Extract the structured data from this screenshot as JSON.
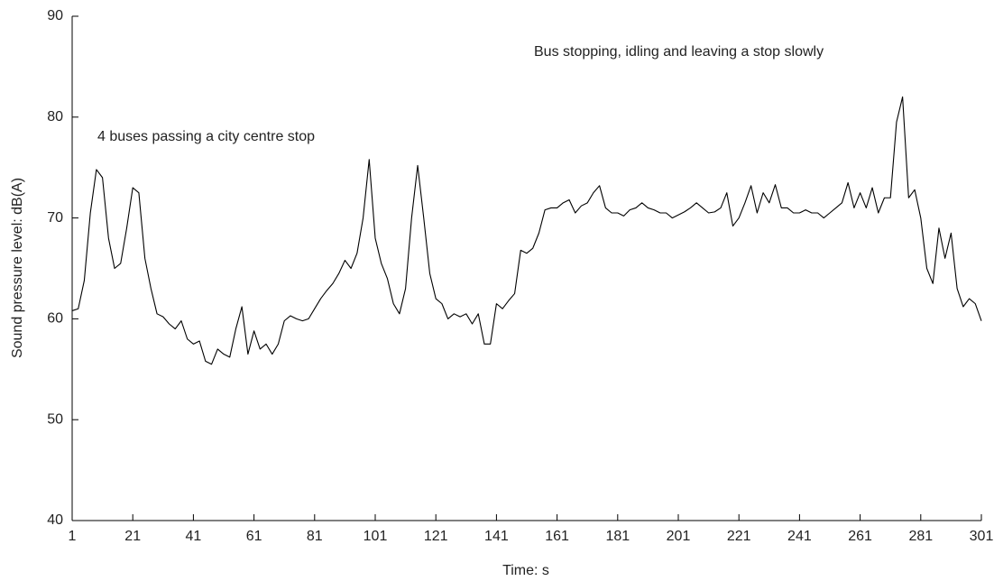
{
  "chart_data": {
    "type": "line",
    "xlabel": "Time: s",
    "ylabel": "Sound pressure level: dB(A)",
    "annotations": [
      "4 buses passing a city centre stop",
      "Bus stopping, idling and leaving a stop slowly"
    ],
    "xlim": [
      1,
      301
    ],
    "ylim": [
      40,
      90
    ],
    "xticks": [
      1,
      21,
      41,
      61,
      81,
      101,
      121,
      141,
      161,
      181,
      201,
      221,
      241,
      261,
      281,
      301
    ],
    "yticks": [
      40,
      50,
      60,
      70,
      80,
      90
    ],
    "x": [
      1,
      3,
      5,
      7,
      9,
      11,
      13,
      15,
      17,
      19,
      21,
      23,
      25,
      27,
      29,
      31,
      33,
      35,
      37,
      39,
      41,
      43,
      45,
      47,
      49,
      51,
      53,
      55,
      57,
      59,
      61,
      63,
      65,
      67,
      69,
      71,
      73,
      75,
      77,
      79,
      81,
      83,
      85,
      87,
      89,
      91,
      93,
      95,
      97,
      99,
      101,
      103,
      105,
      107,
      109,
      111,
      113,
      115,
      117,
      119,
      121,
      123,
      125,
      127,
      129,
      131,
      133,
      135,
      137,
      139,
      141,
      143,
      145,
      147,
      149,
      151,
      153,
      155,
      157,
      159,
      161,
      163,
      165,
      167,
      169,
      171,
      173,
      175,
      177,
      179,
      181,
      183,
      185,
      187,
      189,
      191,
      193,
      195,
      197,
      199,
      201,
      203,
      205,
      207,
      209,
      211,
      213,
      215,
      217,
      219,
      221,
      223,
      225,
      227,
      229,
      231,
      233,
      235,
      237,
      239,
      241,
      243,
      245,
      247,
      249,
      251,
      253,
      255,
      257,
      259,
      261,
      263,
      265,
      267,
      269,
      271,
      273,
      275,
      277,
      279,
      281,
      283,
      285,
      287,
      289,
      291,
      293,
      295,
      297,
      299,
      301
    ],
    "series": [
      {
        "color": "#000000",
        "values": [
          60.8,
          61,
          63.8,
          70.5,
          74.8,
          74,
          68,
          65,
          65.5,
          69,
          73,
          72.5,
          66,
          63,
          60.5,
          60.2,
          59.5,
          59,
          59.8,
          58,
          57.5,
          57.8,
          55.8,
          55.5,
          57,
          56.5,
          56.2,
          59,
          61.2,
          56.5,
          58.8,
          57,
          57.5,
          56.5,
          57.5,
          59.8,
          60.3,
          60,
          59.8,
          60,
          61,
          62,
          62.8,
          63.5,
          64.5,
          65.8,
          65,
          66.5,
          70,
          75.8,
          68,
          65.5,
          64,
          61.5,
          60.5,
          63,
          70,
          75.2,
          70,
          64.5,
          62,
          61.5,
          60,
          60.5,
          60.2,
          60.5,
          59.5,
          60.5,
          57.5,
          57.5,
          61.5,
          61,
          61.8,
          62.5,
          66.8,
          66.5,
          67,
          68.5,
          70.8,
          71,
          71,
          71.5,
          71.8,
          70.5,
          71.2,
          71.5,
          72.5,
          73.2,
          71,
          70.5,
          70.5,
          70.2,
          70.8,
          71,
          71.5,
          71,
          70.8,
          70.5,
          70.5,
          70,
          70.3,
          70.6,
          71,
          71.5,
          71,
          70.5,
          70.6,
          71,
          72.5,
          69.2,
          70,
          71.5,
          73.2,
          70.5,
          72.5,
          71.5,
          73.3,
          71,
          71,
          70.5,
          70.5,
          70.8,
          70.5,
          70.5,
          70,
          70.5,
          71,
          71.5,
          73.5,
          71,
          72.5,
          71,
          73,
          70.5,
          72,
          72,
          79.5,
          82,
          72,
          72.8,
          70,
          65,
          63.5,
          69,
          66,
          68.5,
          63,
          61.2,
          62,
          61.5,
          59.8
        ]
      }
    ]
  }
}
